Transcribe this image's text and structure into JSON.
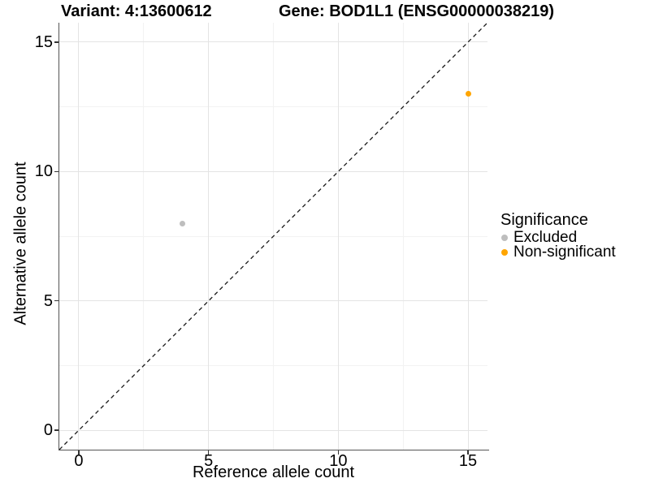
{
  "chart_data": {
    "type": "scatter",
    "title_left": "Variant: 4:13600612",
    "title_right": "Gene: BOD1L1 (ENSG00000038219)",
    "xlabel": "Reference allele count",
    "ylabel": "Alternative allele count",
    "xlim": [
      -0.75,
      15.75
    ],
    "ylim": [
      -0.75,
      15.75
    ],
    "x_ticks": [
      0,
      5,
      10,
      15
    ],
    "y_ticks": [
      0,
      5,
      10,
      15
    ],
    "x_minor_ticks": [
      2.5,
      7.5,
      12.5
    ],
    "y_minor_ticks": [
      2.5,
      7.5,
      12.5
    ],
    "grid": "major and minor gridlines on",
    "identity_line": {
      "style": "dashed",
      "slope": 1,
      "intercept": 0,
      "color": "#1a1a1a"
    },
    "series": [
      {
        "name": "Excluded",
        "color": "#bebebe",
        "points": [
          {
            "x": 4,
            "y": 8
          }
        ]
      },
      {
        "name": "Non-significant",
        "color": "#ffa500",
        "points": [
          {
            "x": 15,
            "y": 13
          }
        ]
      }
    ],
    "legend": {
      "title": "Significance",
      "position": "right",
      "entries": [
        {
          "label": "Excluded",
          "color": "#bebebe"
        },
        {
          "label": "Non-significant",
          "color": "#ffa500"
        }
      ]
    }
  },
  "colors": {
    "background": "#ffffff",
    "axis_line": "#555555",
    "tick_mark": "#333333",
    "grid_major": "#e4e4e4",
    "grid_minor": "#f2f2f2",
    "text": "#000000"
  }
}
